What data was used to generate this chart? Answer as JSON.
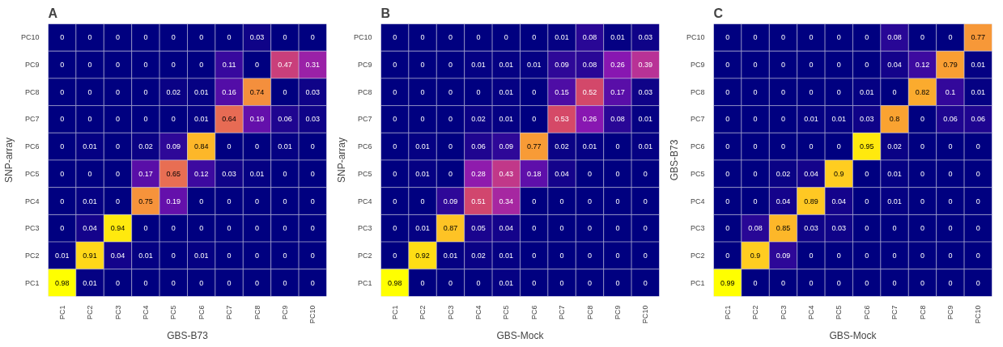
{
  "chart_data": [
    {
      "type": "heatmap",
      "title": "A",
      "xlabel": "GBS-B73",
      "ylabel": "SNP-array",
      "data_labels": true,
      "categories": [
        "PC1",
        "PC2",
        "PC3",
        "PC4",
        "PC5",
        "PC6",
        "PC7",
        "PC8",
        "PC9",
        "PC10"
      ],
      "y_categories": [
        "PC10",
        "PC9",
        "PC8",
        "PC7",
        "PC6",
        "PC5",
        "PC4",
        "PC3",
        "PC2",
        "PC1"
      ],
      "cells": [
        [
          0,
          0,
          0,
          0,
          0,
          0,
          0,
          0.03,
          0,
          0
        ],
        [
          0,
          0,
          0,
          0,
          0,
          0,
          0.11,
          0,
          0.47,
          0.31
        ],
        [
          0,
          0,
          0,
          0,
          0.02,
          0.01,
          0.16,
          0.74,
          0,
          0.03
        ],
        [
          0,
          0,
          0,
          0,
          0,
          0.01,
          0.64,
          0.19,
          0.06,
          0.03
        ],
        [
          0,
          0.01,
          0,
          0.02,
          0.09,
          0.84,
          0,
          0,
          0.01,
          0
        ],
        [
          0,
          0,
          0,
          0.17,
          0.65,
          0.12,
          0.03,
          0.01,
          0,
          0
        ],
        [
          0,
          0.01,
          0,
          0.75,
          0.19,
          0,
          0,
          0,
          0,
          0
        ],
        [
          0,
          0.04,
          0.94,
          0,
          0,
          0,
          0,
          0,
          0,
          0
        ],
        [
          0.01,
          0.91,
          0.04,
          0.01,
          0,
          0.01,
          0,
          0,
          0,
          0
        ],
        [
          0.98,
          0.01,
          0,
          0,
          0,
          0,
          0,
          0,
          0,
          0
        ]
      ]
    },
    {
      "type": "heatmap",
      "title": "B",
      "xlabel": "GBS-Mock",
      "ylabel": "SNP-array",
      "data_labels": true,
      "categories": [
        "PC1",
        "PC2",
        "PC3",
        "PC4",
        "PC5",
        "PC6",
        "PC7",
        "PC8",
        "PC9",
        "PC10"
      ],
      "y_categories": [
        "PC10",
        "PC9",
        "PC8",
        "PC7",
        "PC6",
        "PC5",
        "PC4",
        "PC3",
        "PC2",
        "PC1"
      ],
      "cells": [
        [
          0,
          0,
          0,
          0,
          0,
          0,
          0.01,
          0.08,
          0.01,
          0.03
        ],
        [
          0,
          0,
          0,
          0.01,
          0.01,
          0.01,
          0.09,
          0.08,
          0.26,
          0.39
        ],
        [
          0,
          0,
          0,
          0,
          0.01,
          0,
          0.15,
          0.52,
          0.17,
          0.03
        ],
        [
          0,
          0,
          0,
          0.02,
          0.01,
          0,
          0.53,
          0.26,
          0.08,
          0.01
        ],
        [
          0,
          0.01,
          0,
          0.06,
          0.09,
          0.77,
          0.02,
          0.01,
          0,
          0.01
        ],
        [
          0,
          0.01,
          0,
          0.28,
          0.43,
          0.18,
          0.04,
          0,
          0,
          0
        ],
        [
          0,
          0,
          0.09,
          0.51,
          0.34,
          0,
          0,
          0,
          0,
          0
        ],
        [
          0,
          0.01,
          0.87,
          0.05,
          0.04,
          0,
          0,
          0,
          0,
          0
        ],
        [
          0,
          0.92,
          0.01,
          0.02,
          0.01,
          0,
          0,
          0,
          0,
          0
        ],
        [
          0.98,
          0,
          0,
          0,
          0.01,
          0,
          0,
          0,
          0,
          0
        ]
      ]
    },
    {
      "type": "heatmap",
      "title": "C",
      "xlabel": "GBS-Mock",
      "ylabel": "GBS-B73",
      "data_labels": true,
      "categories": [
        "PC1",
        "PC2",
        "PC3",
        "PC4",
        "PC5",
        "PC6",
        "PC7",
        "PC8",
        "PC9",
        "PC10"
      ],
      "y_categories": [
        "PC10",
        "PC9",
        "PC8",
        "PC7",
        "PC6",
        "PC5",
        "PC4",
        "PC3",
        "PC2",
        "PC1"
      ],
      "cells": [
        [
          0,
          0,
          0,
          0,
          0,
          0,
          0.08,
          0,
          0,
          0.77
        ],
        [
          0,
          0,
          0,
          0,
          0,
          0,
          0.04,
          0.12,
          0.79,
          0.01
        ],
        [
          0,
          0,
          0,
          0,
          0,
          0.01,
          0,
          0.82,
          0.1,
          0.01
        ],
        [
          0,
          0,
          0,
          0.01,
          0.01,
          0.03,
          0.8,
          0,
          0.06,
          0.06
        ],
        [
          0,
          0,
          0,
          0,
          0,
          0.95,
          0.02,
          0,
          0,
          0
        ],
        [
          0,
          0,
          0.02,
          0.04,
          0.9,
          0,
          0.01,
          0,
          0,
          0
        ],
        [
          0,
          0,
          0.04,
          0.89,
          0.04,
          0,
          0.01,
          0,
          0,
          0
        ],
        [
          0,
          0.08,
          0.85,
          0.03,
          0.03,
          0,
          0,
          0,
          0,
          0
        ],
        [
          0,
          0.9,
          0.09,
          0,
          0,
          0,
          0,
          0,
          0,
          0
        ],
        [
          0.99,
          0,
          0,
          0,
          0,
          0,
          0,
          0,
          0,
          0
        ]
      ]
    }
  ]
}
